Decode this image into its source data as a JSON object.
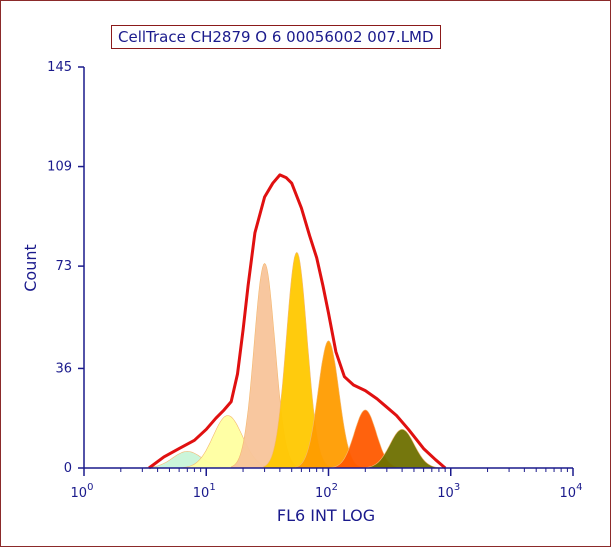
{
  "chart_data": {
    "type": "area",
    "title": "CellTrace CH2879 O 6 00056002 007.LMD",
    "xlabel": "FL6 INT LOG",
    "ylabel": "Count",
    "xscale": "log",
    "xlim": [
      1,
      10000
    ],
    "ylim": [
      0,
      145
    ],
    "x_ticks": [
      {
        "value": 1,
        "base": "10",
        "exp": "0"
      },
      {
        "value": 10,
        "base": "10",
        "exp": "1"
      },
      {
        "value": 100,
        "base": "10",
        "exp": "2"
      },
      {
        "value": 1000,
        "base": "10",
        "exp": "3"
      },
      {
        "value": 10000,
        "base": "10",
        "exp": "4"
      }
    ],
    "y_ticks": [
      "0",
      "36",
      "73",
      "109",
      "145"
    ],
    "grid": false,
    "total_curve": {
      "color": "#e01010",
      "points": [
        [
          3.4,
          0
        ],
        [
          4.5,
          4
        ],
        [
          6,
          7
        ],
        [
          8,
          10
        ],
        [
          10,
          14
        ],
        [
          12,
          18
        ],
        [
          14,
          21
        ],
        [
          16,
          24
        ],
        [
          18,
          34
        ],
        [
          20,
          50
        ],
        [
          22,
          66
        ],
        [
          25,
          85
        ],
        [
          30,
          98
        ],
        [
          35,
          103
        ],
        [
          40,
          106
        ],
        [
          45,
          105
        ],
        [
          50,
          103
        ],
        [
          60,
          94
        ],
        [
          70,
          84
        ],
        [
          80,
          76
        ],
        [
          90,
          66
        ],
        [
          100,
          56
        ],
        [
          115,
          42
        ],
        [
          135,
          33
        ],
        [
          160,
          30
        ],
        [
          200,
          28
        ],
        [
          250,
          25
        ],
        [
          300,
          22
        ],
        [
          360,
          19
        ],
        [
          450,
          14
        ],
        [
          600,
          7
        ],
        [
          750,
          3
        ],
        [
          900,
          0
        ]
      ]
    },
    "generations": [
      {
        "peak_x": 7,
        "height": 6,
        "sigma": 0.12,
        "color": "#c8f4d8"
      },
      {
        "peak_x": 15,
        "height": 19,
        "sigma": 0.12,
        "color": "#ffffa0"
      },
      {
        "peak_x": 30,
        "height": 74,
        "sigma": 0.085,
        "color": "#f8c49a"
      },
      {
        "peak_x": 55,
        "height": 78,
        "sigma": 0.085,
        "color": "#ffc800"
      },
      {
        "peak_x": 100,
        "height": 46,
        "sigma": 0.085,
        "color": "#ff9c00"
      },
      {
        "peak_x": 200,
        "height": 21,
        "sigma": 0.09,
        "color": "#ff5a00"
      },
      {
        "peak_x": 400,
        "height": 14,
        "sigma": 0.1,
        "color": "#6e7000"
      }
    ]
  }
}
